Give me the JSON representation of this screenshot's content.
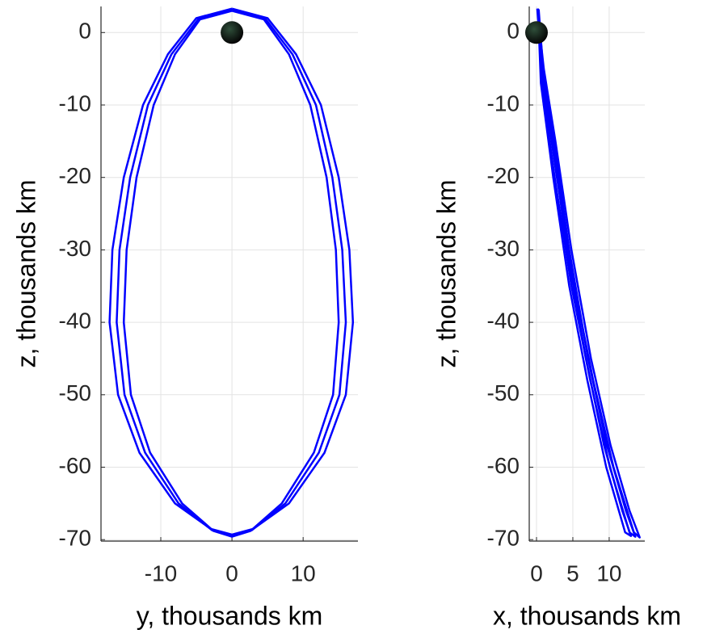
{
  "chart_data": [
    {
      "type": "line",
      "x_label": "y, thousands km",
      "y_label": "z, thousands km",
      "xlim": [
        -18.4,
        17.7
      ],
      "ylim": [
        -70.2,
        3.6
      ],
      "xticks": [
        -10,
        0,
        10
      ],
      "yticks": [
        -70,
        -60,
        -50,
        -40,
        -30,
        -20,
        -10,
        0
      ],
      "grid": true,
      "body": {
        "x": 0,
        "y": 0
      },
      "series": [
        {
          "color": "#0000ff",
          "x": [
            0,
            5,
            9,
            12.5,
            15,
            16.5,
            17,
            16,
            13,
            8,
            3,
            0,
            -3,
            -8,
            -13,
            -16,
            -17.2,
            -16.8,
            -15.2,
            -12.5,
            -9,
            -5,
            0
          ],
          "values": [
            3.3,
            2,
            -3,
            -10,
            -20,
            -30,
            -40,
            -50,
            -58,
            -65,
            -68.5,
            -69.3,
            -68.5,
            -65,
            -58,
            -50,
            -40,
            -30,
            -20,
            -10,
            -3,
            2,
            3.3
          ]
        },
        {
          "color": "#0000ff",
          "x": [
            0,
            4.7,
            8.5,
            11.8,
            14.1,
            15.5,
            16,
            15.1,
            12.2,
            7.5,
            2.8,
            0,
            -2.8,
            -7.5,
            -12.2,
            -15.1,
            -16.2,
            -15.8,
            -14.3,
            -11.8,
            -8.5,
            -4.7,
            0
          ],
          "values": [
            3.1,
            1.9,
            -3,
            -10,
            -20,
            -30,
            -40,
            -50,
            -58,
            -65,
            -68.7,
            -69.5,
            -68.7,
            -65,
            -58,
            -50,
            -40,
            -30,
            -20,
            -10,
            -3,
            1.9,
            3.1
          ]
        },
        {
          "color": "#0000ff",
          "x": [
            0,
            4.5,
            8,
            11,
            13.3,
            14.6,
            15,
            14.2,
            11.5,
            7,
            2.6,
            0,
            -2.6,
            -7,
            -11.5,
            -14.2,
            -15.2,
            -14.8,
            -13.4,
            -11,
            -8,
            -4.5,
            0
          ],
          "values": [
            3,
            1.8,
            -3,
            -10,
            -20,
            -30,
            -40,
            -50,
            -58,
            -65,
            -68.8,
            -69.6,
            -68.8,
            -65,
            -58,
            -50,
            -40,
            -30,
            -20,
            -10,
            -3,
            1.8,
            3
          ]
        }
      ]
    },
    {
      "type": "line",
      "x_label": "x, thousands km",
      "y_label": "z, thousands km",
      "xlim": [
        -1,
        14.9
      ],
      "ylim": [
        -70.2,
        3.6
      ],
      "xticks": [
        0,
        5,
        10
      ],
      "yticks": [
        -70,
        -60,
        -50,
        -40,
        -30,
        -20,
        -10,
        0
      ],
      "grid": true,
      "body": {
        "x": 0,
        "y": 0
      },
      "series": [
        {
          "color": "#0000ff",
          "x": [
            0.2,
            0.8,
            2.2,
            4.2,
            6.8,
            9.3,
            11.8,
            13,
            12.2,
            9.6,
            7,
            4.5,
            2.3,
            0.6,
            0.2
          ],
          "values": [
            3.3,
            -5,
            -15,
            -30,
            -45,
            -57,
            -66,
            -69.5,
            -69,
            -60,
            -48,
            -35,
            -20,
            -7,
            3.3
          ]
        },
        {
          "color": "#0000ff",
          "x": [
            0.1,
            1,
            2.6,
            4.8,
            7.5,
            10.2,
            12.8,
            14.2,
            13.4,
            10.6,
            7.8,
            5.2,
            2.8,
            0.9,
            0.1
          ],
          "values": [
            3.3,
            -5,
            -15,
            -30,
            -45,
            -57,
            -66,
            -69.7,
            -69,
            -60,
            -48,
            -35,
            -20,
            -7,
            3.3
          ]
        },
        {
          "color": "#0000ff",
          "x": [
            0.3,
            0.9,
            2.4,
            4.5,
            7.1,
            9.7,
            12.3,
            13.6,
            12.8,
            10.1,
            7.4,
            4.8,
            2.5,
            0.7,
            0.3
          ],
          "values": [
            3.2,
            -5,
            -15,
            -30,
            -45,
            -57,
            -66,
            -69.6,
            -69,
            -60,
            -48,
            -35,
            -20,
            -7,
            3.2
          ]
        }
      ]
    }
  ]
}
